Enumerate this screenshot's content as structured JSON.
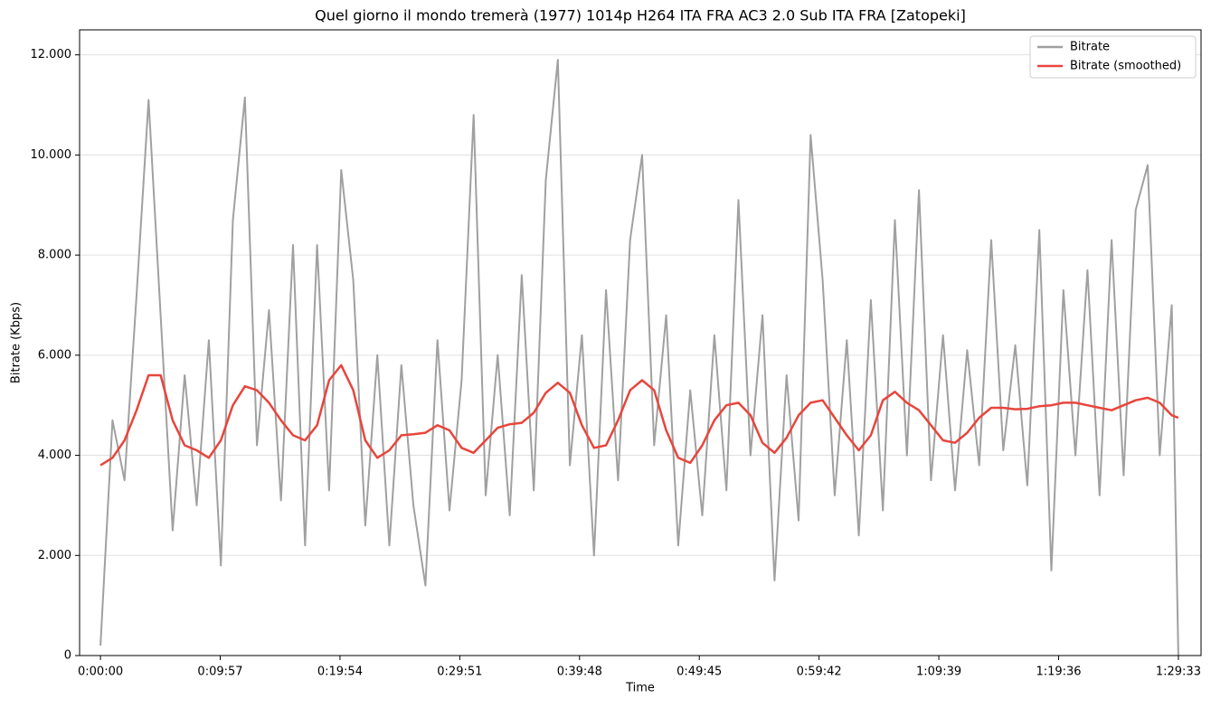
{
  "chart_data": {
    "type": "line",
    "title": "Quel giorno il mondo tremerà (1977) 1014p H264 ITA FRA AC3 2.0 Sub ITA FRA [Zatopeki]",
    "xlabel": "Time",
    "ylabel": "Bitrate (Kbps)",
    "x": [
      0,
      60,
      120,
      180,
      240,
      300,
      360,
      420,
      480,
      540,
      600,
      660,
      720,
      780,
      840,
      900,
      960,
      1020,
      1080,
      1140,
      1200,
      1260,
      1320,
      1380,
      1440,
      1500,
      1560,
      1620,
      1680,
      1740,
      1800,
      1860,
      1920,
      1980,
      2040,
      2100,
      2160,
      2220,
      2280,
      2340,
      2400,
      2460,
      2520,
      2580,
      2640,
      2700,
      2760,
      2820,
      2880,
      2940,
      3000,
      3060,
      3120,
      3180,
      3240,
      3300,
      3360,
      3420,
      3480,
      3540,
      3600,
      3660,
      3720,
      3780,
      3840,
      3900,
      3960,
      4020,
      4080,
      4140,
      4200,
      4260,
      4320,
      4380,
      4440,
      4500,
      4560,
      4620,
      4680,
      4740,
      4800,
      4860,
      4920,
      4980,
      5040,
      5100,
      5160,
      5220,
      5280,
      5340,
      5373
    ],
    "series": [
      {
        "name": "Bitrate",
        "color": "#a0a0a0",
        "values": [
          200,
          4700,
          3500,
          7200,
          11100,
          6800,
          2500,
          5600,
          3000,
          6300,
          1800,
          8700,
          11150,
          4200,
          6900,
          3100,
          8200,
          2200,
          8200,
          3300,
          9700,
          7500,
          2600,
          6000,
          2200,
          5800,
          3000,
          1400,
          6300,
          2900,
          5500,
          10800,
          3200,
          6000,
          2800,
          7600,
          3300,
          9500,
          11900,
          3800,
          6400,
          2000,
          7300,
          3500,
          8300,
          10000,
          4200,
          6800,
          2200,
          5300,
          2800,
          6400,
          3300,
          9100,
          4000,
          6800,
          1500,
          5600,
          2700,
          10400,
          7500,
          3200,
          6300,
          2400,
          7100,
          2900,
          8700,
          4000,
          9300,
          3500,
          6400,
          3300,
          6100,
          3800,
          8300,
          4100,
          6200,
          3400,
          8500,
          1700,
          7300,
          4000,
          7700,
          3200,
          8300,
          3600,
          8900,
          9800,
          4000,
          7000,
          0
        ]
      },
      {
        "name": "Bitrate (smoothed)",
        "color": "#e8453c",
        "values": [
          3800,
          3950,
          4300,
          4900,
          5600,
          5600,
          4700,
          4200,
          4100,
          3950,
          4300,
          5000,
          5380,
          5300,
          5050,
          4700,
          4400,
          4300,
          4600,
          5500,
          5800,
          5300,
          4300,
          3950,
          4100,
          4400,
          4420,
          4450,
          4600,
          4500,
          4150,
          4050,
          4300,
          4550,
          4620,
          4650,
          4850,
          5250,
          5450,
          5250,
          4600,
          4150,
          4200,
          4700,
          5300,
          5500,
          5300,
          4500,
          3950,
          3850,
          4200,
          4700,
          5000,
          5050,
          4800,
          4250,
          4050,
          4350,
          4800,
          5050,
          5100,
          4750,
          4400,
          4100,
          4400,
          5100,
          5270,
          5050,
          4900,
          4600,
          4300,
          4250,
          4450,
          4750,
          4950,
          4950,
          4920,
          4930,
          4980,
          5000,
          5050,
          5050,
          5000,
          4950,
          4900,
          5000,
          5100,
          5150,
          5050,
          4800,
          4750
        ]
      }
    ],
    "xlim": [
      -104,
      5486
    ],
    "xticks": [
      {
        "value": 0,
        "label": "0:00:00"
      },
      {
        "value": 597,
        "label": "0:09:57"
      },
      {
        "value": 1194,
        "label": "0:19:54"
      },
      {
        "value": 1791,
        "label": "0:29:51"
      },
      {
        "value": 2388,
        "label": "0:39:48"
      },
      {
        "value": 2985,
        "label": "0:49:45"
      },
      {
        "value": 3582,
        "label": "0:59:42"
      },
      {
        "value": 4179,
        "label": "1:09:39"
      },
      {
        "value": 4776,
        "label": "1:19:36"
      },
      {
        "value": 5373,
        "label": "1:29:33"
      }
    ],
    "ylim": [
      0,
      12500
    ],
    "yticks": [
      0,
      {
        "value": 2000,
        "label": "2.000"
      },
      {
        "value": 4000,
        "label": "4.000"
      },
      {
        "value": 6000,
        "label": "6.000"
      },
      {
        "value": 8000,
        "label": "8.000"
      },
      {
        "value": 10000,
        "label": "10.000"
      },
      {
        "value": 12000,
        "label": "12.000"
      }
    ],
    "grid": true,
    "legend": "upper right"
  }
}
